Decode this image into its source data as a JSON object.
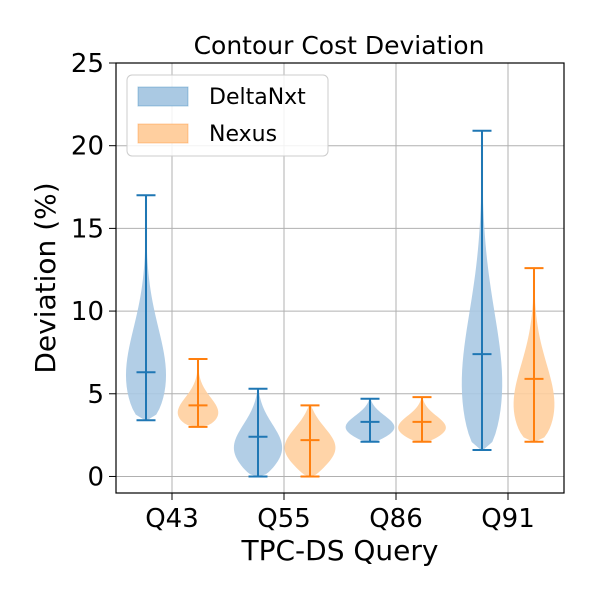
{
  "chart_data": {
    "type": "violin",
    "title": "Contour Cost Deviation",
    "xlabel": "TPC-DS Query",
    "ylabel": "Deviation (%)",
    "categories": [
      "Q43",
      "Q55",
      "Q86",
      "Q91"
    ],
    "ylim": [
      -1,
      25
    ],
    "yticks": [
      0,
      5,
      10,
      15,
      20,
      25
    ],
    "grid": true,
    "legend_position": "top-left",
    "series": [
      {
        "name": "DeltaNxt",
        "color": "#1f77b4",
        "fill": "#aac9e3",
        "stats": [
          {
            "min": 3.4,
            "median": 6.3,
            "max": 17.0
          },
          {
            "min": 0.0,
            "median": 2.4,
            "max": 5.3
          },
          {
            "min": 2.1,
            "median": 3.3,
            "max": 4.7
          },
          {
            "min": 1.6,
            "median": 7.4,
            "max": 20.9
          }
        ]
      },
      {
        "name": "Nexus",
        "color": "#ff7f0e",
        "fill": "#ffcf9f",
        "stats": [
          {
            "min": 3.0,
            "median": 4.3,
            "max": 7.1
          },
          {
            "min": 0.0,
            "median": 2.2,
            "max": 4.3
          },
          {
            "min": 2.1,
            "median": 3.3,
            "max": 4.8
          },
          {
            "min": 2.1,
            "median": 5.9,
            "max": 12.6
          }
        ]
      }
    ]
  }
}
